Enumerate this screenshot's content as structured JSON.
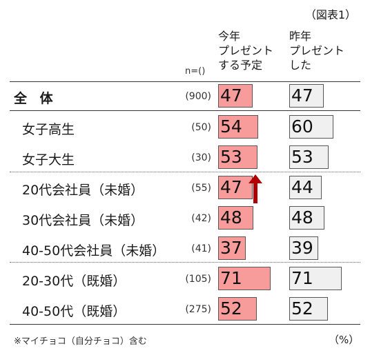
{
  "figure_label": "（図表1）",
  "columns": {
    "this_year": [
      "今年",
      "プレゼント",
      "する予定"
    ],
    "last_year": [
      "昨年",
      "プレゼント",
      "した"
    ]
  },
  "n_label": "n=()",
  "footnote": "※マイチョコ（自分チョコ）含む",
  "unit": "（%）",
  "colors": {
    "this_year_fill": "#f79b9b",
    "last_year_fill": "#f0f0f0",
    "arrow": "#b00000"
  },
  "chart_data": {
    "type": "bar",
    "orientation": "horizontal",
    "categories": [
      "全 体",
      "女子高生",
      "女子大生",
      "20代会社員（未婚）",
      "30代会社員（未婚）",
      "40-50代会社員（未婚）",
      "20-30代（既婚）",
      "40-50代（既婚）"
    ],
    "n": [
      "(900)",
      "(50)",
      "(30)",
      "(55)",
      "(42)",
      "(41)",
      "(105)",
      "(275)"
    ],
    "series": [
      {
        "name": "今年プレゼントする予定",
        "values": [
          47,
          54,
          53,
          47,
          48,
          37,
          71,
          52
        ]
      },
      {
        "name": "昨年プレゼントした",
        "values": [
          47,
          60,
          53,
          44,
          48,
          39,
          71,
          52
        ]
      }
    ],
    "annotations": [
      {
        "type": "up-arrow",
        "category": "20代会社員（未婚）",
        "series": "今年プレゼントする予定"
      }
    ]
  }
}
